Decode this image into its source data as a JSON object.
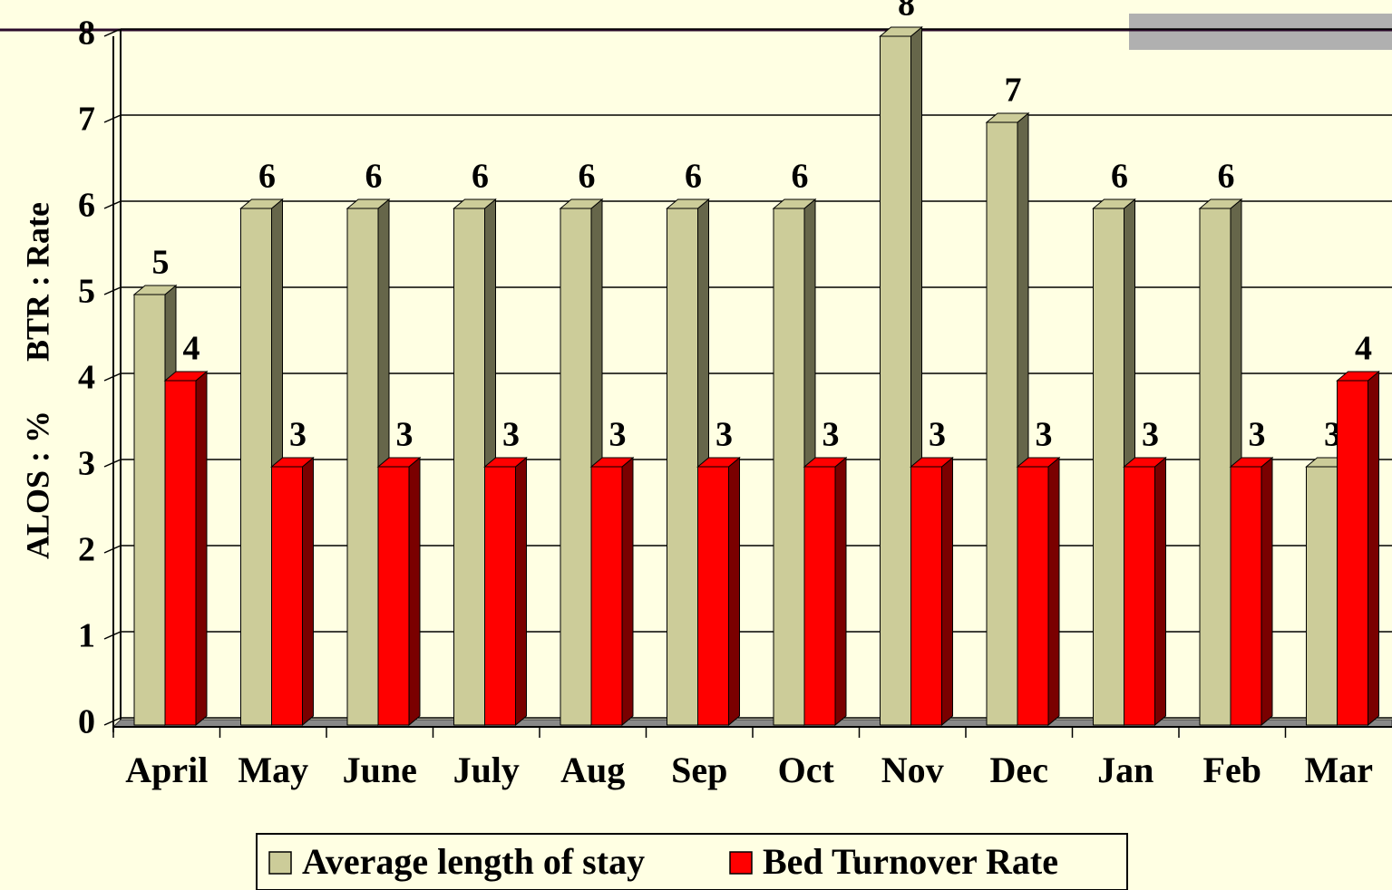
{
  "chart_data": {
    "type": "bar3d",
    "ylabel": "ALOS : %      BTR : Rate",
    "categories": [
      "April",
      "May",
      "June",
      "July",
      "Aug",
      "Sep",
      "Oct",
      "Nov",
      "Dec",
      "Jan",
      "Feb",
      "Mar"
    ],
    "series": [
      {
        "name": "Average length of stay",
        "color": "#cccc99",
        "side": "#66664a",
        "values": [
          5,
          6,
          6,
          6,
          6,
          6,
          6,
          8,
          7,
          6,
          6,
          3
        ]
      },
      {
        "name": "Bed Turnover Rate",
        "color": "#ff0000",
        "side": "#7a0000",
        "values": [
          4,
          3,
          3,
          3,
          3,
          3,
          3,
          3,
          3,
          3,
          3,
          4
        ]
      }
    ],
    "ylim": [
      0,
      8
    ],
    "yticks": [
      0,
      1,
      2,
      3,
      4,
      5,
      6,
      7,
      8
    ],
    "grid": true,
    "legend": "bottom"
  }
}
